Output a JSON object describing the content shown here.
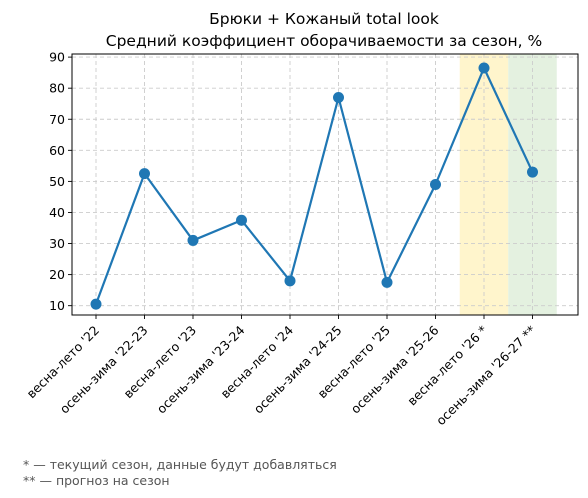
{
  "chart_data": {
    "type": "line",
    "title": "Брюки + Кожаный total look",
    "subtitle": "Средний коэффициент оборачиваемости за сезон, %",
    "xlabel": "",
    "ylabel": "",
    "categories": [
      "весна-лето '22",
      "осень-зима '22-23",
      "весна-лето '23",
      "осень-зима '23-24",
      "весна-лето '24",
      "осень-зима '24-25",
      "весна-лето '25",
      "осень-зима '25-26",
      "весна-лето '26 *",
      "осень-зима '26-27 **"
    ],
    "series": [
      {
        "values": [
          10.5,
          52.5,
          31,
          37.5,
          18,
          77,
          17.5,
          49,
          86.5,
          53
        ],
        "color": "#1f77b4"
      }
    ],
    "ylim": [
      7,
      91
    ],
    "yticks": [
      10,
      20,
      30,
      40,
      50,
      60,
      70,
      80,
      90
    ],
    "grid": true,
    "highlights": [
      {
        "category_index": 8,
        "color": "#fff5cc",
        "meaning": "current season"
      },
      {
        "category_index": 9,
        "color": "#e4f1e0",
        "meaning": "forecast"
      }
    ]
  },
  "footnotes": [
    "* — текущий сезон, данные будут добавляться",
    "** — прогноз на сезон"
  ]
}
